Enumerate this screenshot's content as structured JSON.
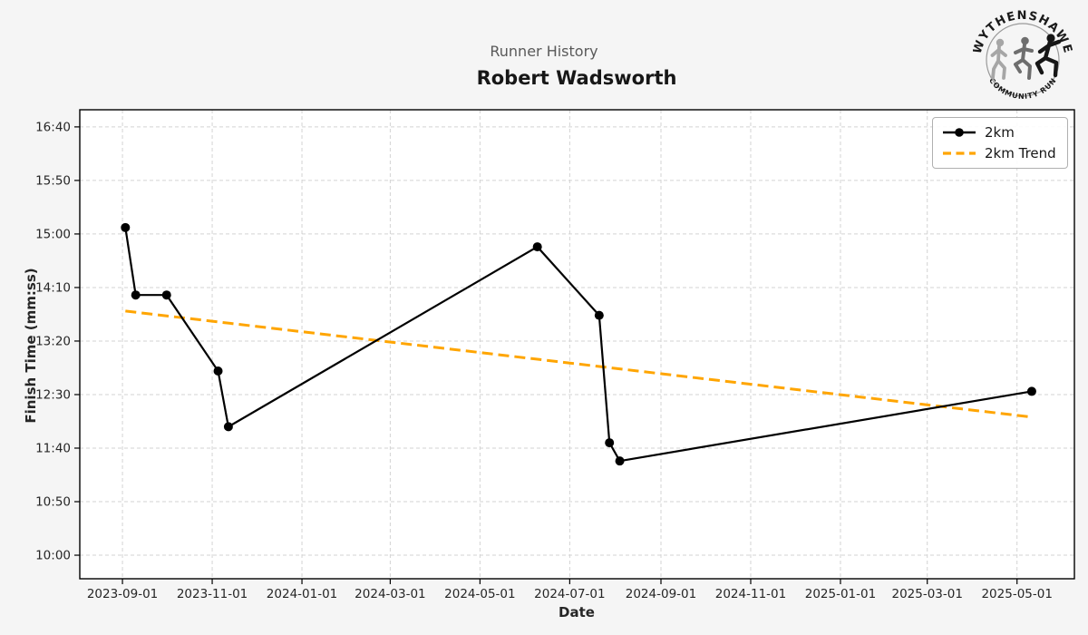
{
  "figure": {
    "title": "Runner History",
    "subtitle": "Robert Wadsworth"
  },
  "logo": {
    "arc_top": "WYTHENSHAWE",
    "arc_bottom": "COMMUNITY RUN"
  },
  "legend": {
    "items": [
      {
        "label": "2km"
      },
      {
        "label": "2km Trend"
      }
    ]
  },
  "chart_data": {
    "type": "line",
    "title": "Runner History",
    "subtitle": "Robert Wadsworth",
    "xlabel": "Date",
    "ylabel": "Finish Time (mm:ss)",
    "grid": true,
    "legend_position": "upper right",
    "x_ticks": [
      "2023-09-01",
      "2023-11-01",
      "2024-01-01",
      "2024-03-01",
      "2024-05-01",
      "2024-07-01",
      "2024-09-01",
      "2024-11-01",
      "2025-01-01",
      "2025-03-01",
      "2025-05-01"
    ],
    "y_ticks": [
      "16:40",
      "15:50",
      "15:00",
      "14:10",
      "13:20",
      "12:30",
      "11:40",
      "10:50",
      "10:00"
    ],
    "x_domain": [
      "2023-08-03",
      "2025-06-09"
    ],
    "y_domain_mmss": [
      "16:56",
      "09:38"
    ],
    "series": [
      {
        "name": "2km",
        "color": "#000000",
        "marker": "circle",
        "points": [
          {
            "date": "2023-09-03",
            "time": "15:06"
          },
          {
            "date": "2023-09-10",
            "time": "14:03"
          },
          {
            "date": "2023-10-01",
            "time": "14:03"
          },
          {
            "date": "2023-11-05",
            "time": "12:52"
          },
          {
            "date": "2023-11-12",
            "time": "12:00"
          },
          {
            "date": "2024-06-09",
            "time": "14:48"
          },
          {
            "date": "2024-07-21",
            "time": "13:44"
          },
          {
            "date": "2024-07-28",
            "time": "11:45"
          },
          {
            "date": "2024-08-04",
            "time": "11:28"
          },
          {
            "date": "2025-05-11",
            "time": "12:33"
          }
        ]
      }
    ],
    "trend": {
      "name": "2km Trend",
      "color": "#FFA500",
      "style": "dashed",
      "points": [
        {
          "date": "2023-09-03",
          "time": "13:48"
        },
        {
          "date": "2025-05-11",
          "time": "12:09"
        }
      ]
    }
  }
}
